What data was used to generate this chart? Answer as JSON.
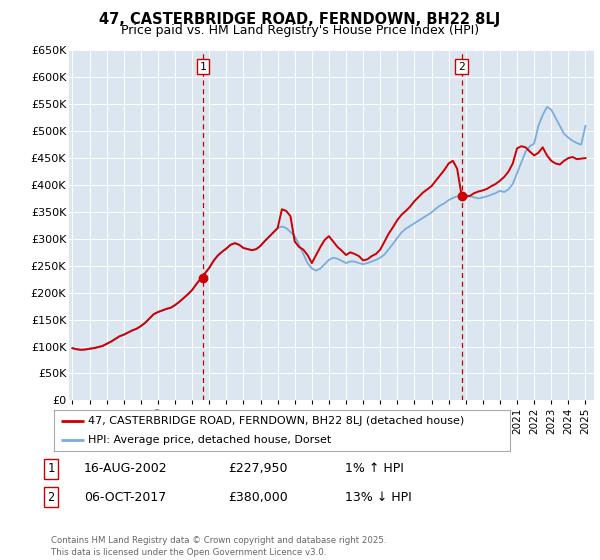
{
  "title": "47, CASTERBRIDGE ROAD, FERNDOWN, BH22 8LJ",
  "subtitle": "Price paid vs. HM Land Registry's House Price Index (HPI)",
  "ylim": [
    0,
    650000
  ],
  "yticks": [
    0,
    50000,
    100000,
    150000,
    200000,
    250000,
    300000,
    350000,
    400000,
    450000,
    500000,
    550000,
    600000,
    650000
  ],
  "ytick_labels": [
    "£0",
    "£50K",
    "£100K",
    "£150K",
    "£200K",
    "£250K",
    "£300K",
    "£350K",
    "£400K",
    "£450K",
    "£500K",
    "£550K",
    "£600K",
    "£650K"
  ],
  "xlim_start": 1994.8,
  "xlim_end": 2025.5,
  "plot_bg_color": "#dce6f1",
  "red_line_color": "#cc0000",
  "blue_line_color": "#7aaddc",
  "vline_color": "#cc0000",
  "vline1_x": 2002.62,
  "vline2_x": 2017.76,
  "marker1_label": "1",
  "marker2_label": "2",
  "legend_line1": "47, CASTERBRIDGE ROAD, FERNDOWN, BH22 8LJ (detached house)",
  "legend_line2": "HPI: Average price, detached house, Dorset",
  "ann1_num": "1",
  "ann1_date": "16-AUG-2002",
  "ann1_price": "£227,950",
  "ann1_hpi": "1% ↑ HPI",
  "ann2_num": "2",
  "ann2_date": "06-OCT-2017",
  "ann2_price": "£380,000",
  "ann2_hpi": "13% ↓ HPI",
  "footer": "Contains HM Land Registry data © Crown copyright and database right 2025.\nThis data is licensed under the Open Government Licence v3.0.",
  "hpi_x": [
    1995.0,
    1995.25,
    1995.5,
    1995.75,
    1996.0,
    1996.25,
    1996.5,
    1996.75,
    1997.0,
    1997.25,
    1997.5,
    1997.75,
    1998.0,
    1998.25,
    1998.5,
    1998.75,
    1999.0,
    1999.25,
    1999.5,
    1999.75,
    2000.0,
    2000.25,
    2000.5,
    2000.75,
    2001.0,
    2001.25,
    2001.5,
    2001.75,
    2002.0,
    2002.25,
    2002.5,
    2002.75,
    2003.0,
    2003.25,
    2003.5,
    2003.75,
    2004.0,
    2004.25,
    2004.5,
    2004.75,
    2005.0,
    2005.25,
    2005.5,
    2005.75,
    2006.0,
    2006.25,
    2006.5,
    2006.75,
    2007.0,
    2007.25,
    2007.5,
    2007.75,
    2008.0,
    2008.25,
    2008.5,
    2008.75,
    2009.0,
    2009.25,
    2009.5,
    2009.75,
    2010.0,
    2010.25,
    2010.5,
    2010.75,
    2011.0,
    2011.25,
    2011.5,
    2011.75,
    2012.0,
    2012.25,
    2012.5,
    2012.75,
    2013.0,
    2013.25,
    2013.5,
    2013.75,
    2014.0,
    2014.25,
    2014.5,
    2014.75,
    2015.0,
    2015.25,
    2015.5,
    2015.75,
    2016.0,
    2016.25,
    2016.5,
    2016.75,
    2017.0,
    2017.25,
    2017.5,
    2017.75,
    2018.0,
    2018.25,
    2018.5,
    2018.75,
    2019.0,
    2019.25,
    2019.5,
    2019.75,
    2020.0,
    2020.25,
    2020.5,
    2020.75,
    2021.0,
    2021.25,
    2021.5,
    2021.75,
    2022.0,
    2022.25,
    2022.5,
    2022.75,
    2023.0,
    2023.25,
    2023.5,
    2023.75,
    2024.0,
    2024.25,
    2024.5,
    2024.75,
    2025.0
  ],
  "hpi_y": [
    97000,
    95000,
    94000,
    94500,
    96000,
    97000,
    99000,
    101000,
    105000,
    109000,
    114000,
    119000,
    122000,
    126000,
    130000,
    133000,
    138000,
    144000,
    152000,
    160000,
    164000,
    167000,
    170000,
    172000,
    177000,
    183000,
    190000,
    197000,
    205000,
    216000,
    226000,
    236000,
    246000,
    259000,
    269000,
    276000,
    282000,
    289000,
    292000,
    289000,
    283000,
    281000,
    279000,
    281000,
    287000,
    296000,
    304000,
    312000,
    320000,
    323000,
    320000,
    313000,
    305000,
    289000,
    272000,
    255000,
    245000,
    241000,
    245000,
    253000,
    261000,
    265000,
    263000,
    259000,
    255000,
    258000,
    258000,
    255000,
    253000,
    255000,
    258000,
    261000,
    265000,
    271000,
    281000,
    291000,
    302000,
    312000,
    319000,
    324000,
    329000,
    334000,
    339000,
    344000,
    349000,
    356000,
    362000,
    366000,
    372000,
    376000,
    379000,
    380000,
    382000,
    379000,
    377000,
    375000,
    377000,
    379000,
    382000,
    385000,
    389000,
    387000,
    392000,
    402000,
    422000,
    442000,
    462000,
    472000,
    477000,
    510000,
    530000,
    545000,
    540000,
    525000,
    510000,
    495000,
    488000,
    482000,
    478000,
    475000,
    510000
  ],
  "red_x": [
    1995.0,
    1995.25,
    1995.5,
    1995.75,
    1996.0,
    1996.25,
    1996.5,
    1996.75,
    1997.0,
    1997.25,
    1997.5,
    1997.75,
    1998.0,
    1998.25,
    1998.5,
    1998.75,
    1999.0,
    1999.25,
    1999.5,
    1999.75,
    2000.0,
    2000.25,
    2000.5,
    2000.75,
    2001.0,
    2001.25,
    2001.5,
    2001.75,
    2002.0,
    2002.25,
    2002.5,
    2002.62,
    2002.75,
    2003.0,
    2003.25,
    2003.5,
    2003.75,
    2004.0,
    2004.25,
    2004.5,
    2004.75,
    2005.0,
    2005.25,
    2005.5,
    2005.75,
    2006.0,
    2006.25,
    2006.5,
    2006.75,
    2007.0,
    2007.25,
    2007.5,
    2007.75,
    2008.0,
    2008.25,
    2008.5,
    2008.75,
    2009.0,
    2009.25,
    2009.5,
    2009.75,
    2010.0,
    2010.25,
    2010.5,
    2010.75,
    2011.0,
    2011.25,
    2011.5,
    2011.75,
    2012.0,
    2012.25,
    2012.5,
    2012.75,
    2013.0,
    2013.25,
    2013.5,
    2013.75,
    2014.0,
    2014.25,
    2014.5,
    2014.75,
    2015.0,
    2015.25,
    2015.5,
    2015.75,
    2016.0,
    2016.25,
    2016.5,
    2016.75,
    2017.0,
    2017.25,
    2017.5,
    2017.76,
    2018.0,
    2018.25,
    2018.5,
    2018.75,
    2019.0,
    2019.25,
    2019.5,
    2019.75,
    2020.0,
    2020.25,
    2020.5,
    2020.75,
    2021.0,
    2021.25,
    2021.5,
    2021.75,
    2022.0,
    2022.25,
    2022.5,
    2022.75,
    2023.0,
    2023.25,
    2023.5,
    2023.75,
    2024.0,
    2024.25,
    2024.5,
    2025.0
  ],
  "red_y": [
    97000,
    95000,
    94000,
    94500,
    96000,
    97000,
    99000,
    101000,
    105000,
    109000,
    114000,
    119000,
    122000,
    126000,
    130000,
    133000,
    138000,
    144000,
    152000,
    160000,
    164000,
    167000,
    170000,
    172000,
    177000,
    183000,
    190000,
    197000,
    205000,
    216000,
    226000,
    227950,
    236000,
    246000,
    259000,
    269000,
    276000,
    282000,
    289000,
    292000,
    289000,
    283000,
    281000,
    279000,
    281000,
    287000,
    296000,
    304000,
    312000,
    320000,
    355000,
    352000,
    342000,
    295000,
    285000,
    280000,
    270000,
    255000,
    270000,
    285000,
    298000,
    305000,
    295000,
    285000,
    278000,
    270000,
    275000,
    272000,
    268000,
    260000,
    262000,
    268000,
    272000,
    280000,
    295000,
    310000,
    322000,
    335000,
    345000,
    352000,
    360000,
    370000,
    378000,
    386000,
    392000,
    398000,
    408000,
    418000,
    428000,
    440000,
    445000,
    430000,
    380000,
    378000,
    380000,
    385000,
    388000,
    390000,
    393000,
    398000,
    402000,
    408000,
    415000,
    425000,
    440000,
    468000,
    472000,
    470000,
    462000,
    455000,
    460000,
    470000,
    455000,
    445000,
    440000,
    438000,
    445000,
    450000,
    452000,
    448000,
    450000
  ]
}
